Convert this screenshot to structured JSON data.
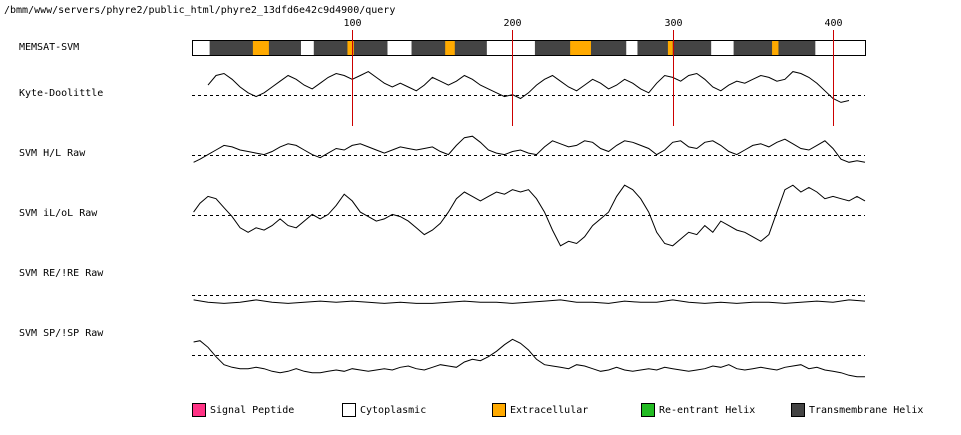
{
  "header": {
    "path": "/bmm/www/servers/phyre2/public_html/phyre2_13dfd6e42c9d4900/query"
  },
  "tracks": [
    {
      "id": "memsat",
      "label": "MEMSAT-SVM"
    },
    {
      "id": "kd",
      "label": "Kyte-Doolittle"
    },
    {
      "id": "hl",
      "label": "SVM H/L Raw"
    },
    {
      "id": "iloL",
      "label": "SVM iL/oL Raw"
    },
    {
      "id": "re",
      "label": "SVM RE/!RE Raw"
    },
    {
      "id": "sp",
      "label": "SVM SP/!SP Raw"
    }
  ],
  "legend": [
    {
      "label": "Signal Peptide",
      "color": "#ff3385"
    },
    {
      "label": "Cytoplasmic",
      "color": "#ffffff"
    },
    {
      "label": "Extracellular",
      "color": "#ffaa00"
    },
    {
      "label": "Re-entrant Helix",
      "color": "#22bb22"
    },
    {
      "label": "Transmembrane Helix",
      "color": "#444444"
    }
  ],
  "chart_data": {
    "type": "line",
    "sequence_length": 420,
    "xticks": [
      100,
      200,
      300,
      400
    ],
    "marker_color": "#cc0000",
    "topology_segments": [
      {
        "start": 1,
        "end": 12,
        "region": "Cytoplasmic"
      },
      {
        "start": 12,
        "end": 39,
        "region": "Transmembrane Helix"
      },
      {
        "start": 39,
        "end": 49,
        "region": "Extracellular"
      },
      {
        "start": 49,
        "end": 69,
        "region": "Transmembrane Helix"
      },
      {
        "start": 69,
        "end": 77,
        "region": "Cytoplasmic"
      },
      {
        "start": 77,
        "end": 98,
        "region": "Transmembrane Helix"
      },
      {
        "start": 98,
        "end": 102,
        "region": "Extracellular"
      },
      {
        "start": 102,
        "end": 123,
        "region": "Transmembrane Helix"
      },
      {
        "start": 123,
        "end": 138,
        "region": "Cytoplasmic"
      },
      {
        "start": 138,
        "end": 159,
        "region": "Transmembrane Helix"
      },
      {
        "start": 159,
        "end": 165,
        "region": "Extracellular"
      },
      {
        "start": 165,
        "end": 185,
        "region": "Transmembrane Helix"
      },
      {
        "start": 185,
        "end": 215,
        "region": "Cytoplasmic"
      },
      {
        "start": 215,
        "end": 237,
        "region": "Transmembrane Helix"
      },
      {
        "start": 237,
        "end": 250,
        "region": "Extracellular"
      },
      {
        "start": 250,
        "end": 272,
        "region": "Transmembrane Helix"
      },
      {
        "start": 272,
        "end": 279,
        "region": "Cytoplasmic"
      },
      {
        "start": 279,
        "end": 298,
        "region": "Transmembrane Helix"
      },
      {
        "start": 298,
        "end": 301,
        "region": "Extracellular"
      },
      {
        "start": 301,
        "end": 325,
        "region": "Transmembrane Helix"
      },
      {
        "start": 325,
        "end": 339,
        "region": "Cytoplasmic"
      },
      {
        "start": 339,
        "end": 363,
        "region": "Transmembrane Helix"
      },
      {
        "start": 363,
        "end": 367,
        "region": "Extracellular"
      },
      {
        "start": 367,
        "end": 390,
        "region": "Transmembrane Helix"
      },
      {
        "start": 390,
        "end": 420,
        "region": "Cytoplasmic"
      }
    ],
    "series": [
      {
        "track": "kd",
        "ylim": [
          -1,
          1.6
        ],
        "x": [
          10,
          15,
          20,
          25,
          30,
          35,
          40,
          45,
          50,
          55,
          60,
          65,
          70,
          75,
          80,
          85,
          90,
          95,
          100,
          105,
          110,
          115,
          120,
          125,
          130,
          135,
          140,
          145,
          150,
          155,
          160,
          165,
          170,
          175,
          180,
          185,
          190,
          195,
          200,
          205,
          210,
          215,
          220,
          225,
          230,
          235,
          240,
          245,
          250,
          255,
          260,
          265,
          270,
          275,
          280,
          285,
          290,
          295,
          300,
          305,
          310,
          315,
          320,
          325,
          330,
          335,
          340,
          345,
          350,
          355,
          360,
          365,
          370,
          375,
          380,
          385,
          390,
          395,
          400,
          405,
          410
        ],
        "y": [
          0.4,
          0.9,
          1.0,
          0.7,
          0.3,
          0.0,
          -0.2,
          0.0,
          0.3,
          0.6,
          0.9,
          0.7,
          0.4,
          0.2,
          0.5,
          0.8,
          1.0,
          0.9,
          0.7,
          0.9,
          1.1,
          0.8,
          0.5,
          0.3,
          0.5,
          0.3,
          0.1,
          0.4,
          0.8,
          0.6,
          0.4,
          0.6,
          0.9,
          0.7,
          0.4,
          0.2,
          0.0,
          -0.2,
          -0.1,
          -0.3,
          0.0,
          0.4,
          0.7,
          0.9,
          0.6,
          0.3,
          0.1,
          0.4,
          0.7,
          0.5,
          0.2,
          0.4,
          0.7,
          0.5,
          0.2,
          0.0,
          0.5,
          0.9,
          0.8,
          0.6,
          0.9,
          1.0,
          0.7,
          0.3,
          0.1,
          0.4,
          0.6,
          0.5,
          0.7,
          0.9,
          0.8,
          0.6,
          0.7,
          1.1,
          1.0,
          0.8,
          0.5,
          0.1,
          -0.3,
          -0.5,
          -0.4
        ]
      },
      {
        "track": "hl",
        "ylim": [
          -1,
          1.6
        ],
        "x": [
          1,
          5,
          10,
          15,
          20,
          25,
          30,
          35,
          40,
          45,
          50,
          55,
          60,
          65,
          70,
          75,
          80,
          85,
          90,
          95,
          100,
          105,
          110,
          115,
          120,
          125,
          130,
          135,
          140,
          145,
          150,
          155,
          160,
          165,
          170,
          175,
          180,
          185,
          190,
          195,
          200,
          205,
          210,
          215,
          220,
          225,
          230,
          235,
          240,
          245,
          250,
          255,
          260,
          265,
          270,
          275,
          280,
          285,
          290,
          295,
          300,
          305,
          310,
          315,
          320,
          325,
          330,
          335,
          340,
          345,
          350,
          355,
          360,
          365,
          370,
          375,
          380,
          385,
          390,
          395,
          400,
          405,
          410,
          415,
          420
        ],
        "y": [
          -0.5,
          -0.3,
          0.0,
          0.3,
          0.6,
          0.5,
          0.3,
          0.2,
          0.1,
          0.0,
          0.2,
          0.5,
          0.7,
          0.6,
          0.3,
          0.0,
          -0.2,
          0.1,
          0.4,
          0.3,
          0.6,
          0.7,
          0.5,
          0.3,
          0.1,
          0.3,
          0.5,
          0.4,
          0.3,
          0.4,
          0.5,
          0.2,
          0.0,
          0.6,
          1.1,
          1.2,
          0.8,
          0.3,
          0.1,
          0.0,
          0.2,
          0.3,
          0.1,
          0.0,
          0.5,
          0.9,
          0.7,
          0.5,
          0.6,
          0.9,
          0.8,
          0.4,
          0.2,
          0.6,
          0.9,
          0.8,
          0.6,
          0.4,
          0.0,
          0.3,
          0.8,
          0.9,
          0.5,
          0.4,
          0.8,
          0.9,
          0.6,
          0.2,
          0.0,
          0.3,
          0.6,
          0.7,
          0.5,
          0.8,
          1.0,
          0.7,
          0.4,
          0.3,
          0.6,
          0.9,
          0.4,
          -0.3,
          -0.5,
          -0.4,
          -0.5
        ]
      },
      {
        "track": "iloL",
        "ylim": [
          -1.6,
          1.3
        ],
        "x": [
          1,
          5,
          10,
          15,
          20,
          25,
          30,
          35,
          40,
          45,
          50,
          55,
          60,
          65,
          70,
          75,
          80,
          85,
          90,
          95,
          100,
          105,
          110,
          115,
          120,
          125,
          130,
          135,
          140,
          145,
          150,
          155,
          160,
          165,
          170,
          175,
          180,
          185,
          190,
          195,
          200,
          205,
          210,
          215,
          220,
          225,
          230,
          235,
          240,
          245,
          250,
          255,
          260,
          265,
          270,
          275,
          280,
          285,
          290,
          295,
          300,
          305,
          310,
          315,
          320,
          325,
          330,
          335,
          340,
          345,
          350,
          355,
          360,
          365,
          370,
          375,
          380,
          385,
          390,
          395,
          400,
          405,
          410,
          415,
          420
        ],
        "y": [
          0.0,
          0.4,
          0.7,
          0.6,
          0.2,
          -0.2,
          -0.7,
          -0.9,
          -0.7,
          -0.8,
          -0.6,
          -0.3,
          -0.6,
          -0.7,
          -0.4,
          -0.1,
          -0.3,
          -0.1,
          0.3,
          0.8,
          0.5,
          0.0,
          -0.2,
          -0.4,
          -0.3,
          -0.1,
          -0.2,
          -0.4,
          -0.7,
          -1.0,
          -0.8,
          -0.5,
          0.0,
          0.6,
          0.9,
          0.7,
          0.5,
          0.7,
          0.9,
          0.8,
          1.0,
          0.9,
          1.0,
          0.6,
          0.0,
          -0.8,
          -1.5,
          -1.3,
          -1.4,
          -1.1,
          -0.6,
          -0.3,
          0.0,
          0.7,
          1.2,
          1.0,
          0.6,
          0.0,
          -0.9,
          -1.4,
          -1.5,
          -1.2,
          -0.9,
          -1.0,
          -0.6,
          -0.9,
          -0.4,
          -0.6,
          -0.8,
          -0.9,
          -1.1,
          -1.3,
          -1.0,
          0.0,
          1.0,
          1.2,
          0.9,
          1.1,
          0.9,
          0.6,
          0.7,
          0.6,
          0.5,
          0.7,
          0.5
        ]
      },
      {
        "track": "re",
        "ylim": [
          -1.0,
          1.0
        ],
        "x": [
          1,
          10,
          20,
          30,
          40,
          50,
          60,
          70,
          80,
          90,
          100,
          110,
          120,
          130,
          140,
          150,
          160,
          170,
          180,
          190,
          200,
          210,
          220,
          230,
          240,
          250,
          260,
          270,
          280,
          290,
          300,
          310,
          320,
          330,
          340,
          350,
          360,
          370,
          380,
          390,
          400,
          410,
          420
        ],
        "y": [
          -0.3,
          -0.5,
          -0.6,
          -0.5,
          -0.3,
          -0.5,
          -0.6,
          -0.5,
          -0.4,
          -0.5,
          -0.4,
          -0.5,
          -0.6,
          -0.5,
          -0.6,
          -0.6,
          -0.5,
          -0.4,
          -0.5,
          -0.5,
          -0.6,
          -0.5,
          -0.4,
          -0.3,
          -0.5,
          -0.5,
          -0.6,
          -0.4,
          -0.5,
          -0.5,
          -0.3,
          -0.5,
          -0.6,
          -0.5,
          -0.6,
          -0.5,
          -0.5,
          -0.6,
          -0.5,
          -0.4,
          -0.5,
          -0.3,
          -0.4
        ]
      },
      {
        "track": "sp",
        "ylim": [
          -2.0,
          1.0
        ],
        "x": [
          1,
          5,
          10,
          15,
          20,
          25,
          30,
          35,
          40,
          45,
          50,
          55,
          60,
          65,
          70,
          75,
          80,
          85,
          90,
          95,
          100,
          105,
          110,
          115,
          120,
          125,
          130,
          135,
          140,
          145,
          150,
          155,
          160,
          165,
          170,
          175,
          180,
          185,
          190,
          195,
          200,
          205,
          210,
          215,
          220,
          225,
          230,
          235,
          240,
          245,
          250,
          255,
          260,
          265,
          270,
          275,
          280,
          285,
          290,
          295,
          300,
          305,
          310,
          315,
          320,
          325,
          330,
          335,
          340,
          345,
          350,
          355,
          360,
          365,
          370,
          375,
          380,
          385,
          390,
          395,
          400,
          405,
          410,
          415,
          420
        ],
        "y": [
          0.7,
          0.8,
          0.3,
          -0.4,
          -1.0,
          -1.2,
          -1.3,
          -1.3,
          -1.2,
          -1.3,
          -1.5,
          -1.6,
          -1.5,
          -1.3,
          -1.5,
          -1.6,
          -1.6,
          -1.5,
          -1.4,
          -1.5,
          -1.3,
          -1.4,
          -1.5,
          -1.4,
          -1.3,
          -1.4,
          -1.2,
          -1.1,
          -1.3,
          -1.4,
          -1.2,
          -1.0,
          -1.1,
          -1.2,
          -0.8,
          -0.6,
          -0.7,
          -0.4,
          0.0,
          0.5,
          0.9,
          0.6,
          0.1,
          -0.6,
          -1.0,
          -1.1,
          -1.2,
          -1.3,
          -1.0,
          -1.1,
          -1.3,
          -1.5,
          -1.4,
          -1.2,
          -1.4,
          -1.5,
          -1.4,
          -1.3,
          -1.4,
          -1.2,
          -1.3,
          -1.4,
          -1.5,
          -1.4,
          -1.3,
          -1.1,
          -1.2,
          -1.0,
          -1.3,
          -1.4,
          -1.3,
          -1.2,
          -1.3,
          -1.4,
          -1.2,
          -1.1,
          -1.0,
          -1.3,
          -1.2,
          -1.4,
          -1.5,
          -1.6,
          -1.8,
          -1.9,
          -1.9
        ]
      }
    ]
  }
}
